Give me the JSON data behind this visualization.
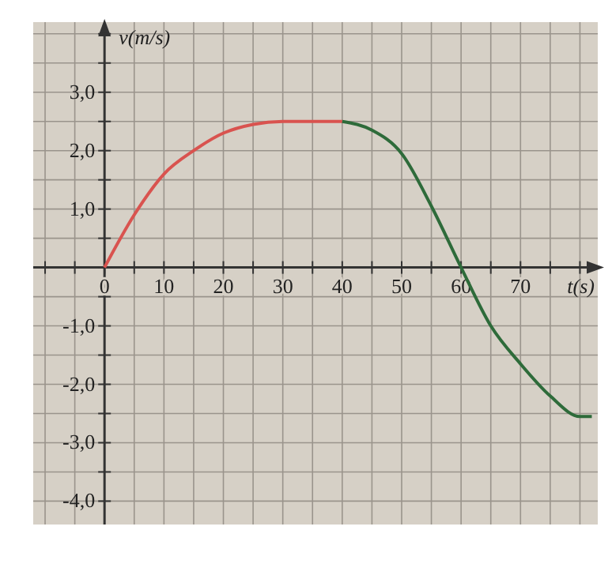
{
  "chart_data": {
    "type": "line",
    "xlabel": "t(s)",
    "ylabel": "v(m/s)",
    "xlim": [
      -12,
      83
    ],
    "ylim": [
      -4.4,
      4.2
    ],
    "xticks": [
      {
        "value": -10,
        "label": null
      },
      {
        "value": -5,
        "label": null
      },
      0,
      {
        "value": 5,
        "label": null
      },
      10,
      {
        "value": 15,
        "label": null
      },
      20,
      {
        "value": 25,
        "label": null
      },
      30,
      {
        "value": 35,
        "label": null
      },
      40,
      {
        "value": 45,
        "label": null
      },
      50,
      {
        "value": 55,
        "label": null
      },
      60,
      {
        "value": 65,
        "label": null
      },
      70,
      {
        "value": 75,
        "label": null
      },
      {
        "value": 80,
        "label": null
      }
    ],
    "yticks": [
      {
        "value": -4,
        "label": "-4,0"
      },
      {
        "value": -3.5,
        "label": null
      },
      {
        "value": -3,
        "label": "-3,0"
      },
      {
        "value": -2.5,
        "label": null
      },
      {
        "value": -2,
        "label": "-2,0"
      },
      {
        "value": -1.5,
        "label": null
      },
      {
        "value": -1,
        "label": "-1,0"
      },
      {
        "value": -0.5,
        "label": null
      },
      {
        "value": 0,
        "label": null
      },
      {
        "value": 0.5,
        "label": null
      },
      {
        "value": 1,
        "label": "1,0"
      },
      {
        "value": 1.5,
        "label": null
      },
      {
        "value": 2,
        "label": "2,0"
      },
      {
        "value": 2.5,
        "label": null
      },
      {
        "value": 3,
        "label": "3,0"
      },
      {
        "value": 3.5,
        "label": null
      },
      {
        "value": 4,
        "label": null
      }
    ],
    "grid": true,
    "marker": "none",
    "line_style": "solid",
    "series": [
      {
        "color": "#d9534f",
        "x": [
          0,
          5,
          10,
          15,
          20,
          25,
          30,
          35,
          40
        ],
        "values": [
          0,
          0.9,
          1.6,
          2.0,
          2.3,
          2.45,
          2.5,
          2.5,
          2.5
        ]
      },
      {
        "color": "#2e6b3a",
        "x": [
          40,
          45,
          50,
          55,
          60,
          65,
          70,
          75,
          80,
          82
        ],
        "values": [
          2.5,
          2.35,
          1.95,
          1.05,
          0,
          -1.0,
          -1.65,
          -2.2,
          -2.55,
          -2.55
        ]
      }
    ]
  }
}
